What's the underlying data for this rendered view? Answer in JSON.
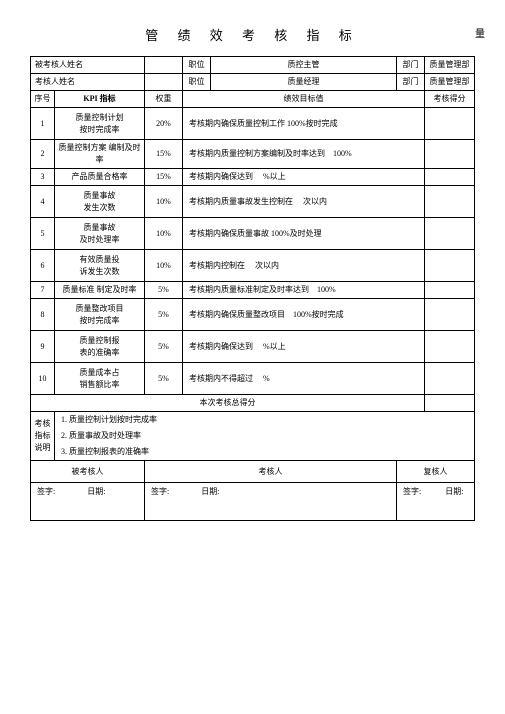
{
  "title": "管 绩 效 考 核 指 标",
  "title_right": "量",
  "header": {
    "assessee_label": "被考核人姓名",
    "assessee_value": "",
    "assessee_pos_label": "职位",
    "assessee_pos_value": "质控主管",
    "assessee_dept_label": "部门",
    "assessee_dept_value": "质量管理部",
    "assessor_label": "考核人姓名",
    "assessor_value": "",
    "assessor_pos_label": "职位",
    "assessor_pos_value": "质量经理",
    "assessor_dept_label": "部门",
    "assessor_dept_value": "质量管理部"
  },
  "columns": {
    "seq": "序号",
    "kpi": "KPI 指标",
    "weight": "权重",
    "target": "绩效目标值",
    "score": "考核得分"
  },
  "rows": [
    {
      "seq": "1",
      "kpi": "质量控制计划\n按时完成率",
      "weight": "20%",
      "target": "考核期内确保质量控制工作 100%按时完成"
    },
    {
      "seq": "2",
      "kpi": "质量控制方案 编制及时率",
      "weight": "15%",
      "target": "考核期内质量控制方案编制及时率达到　100%"
    },
    {
      "seq": "3",
      "kpi": "产品质量合格率",
      "weight": "15%",
      "target": "考核期内确保达到　 %以上"
    },
    {
      "seq": "4",
      "kpi": "质量事故\n发生次数",
      "weight": "10%",
      "target": "考核期内质量事故发生控制在　 次以内"
    },
    {
      "seq": "5",
      "kpi": "质量事故\n及时处理率",
      "weight": "10%",
      "target": "考核期内确保质量事故 100%及时处理"
    },
    {
      "seq": "6",
      "kpi": "有效质量投\n诉发生次数",
      "weight": "10%",
      "target": "考核期内控制在　 次以内"
    },
    {
      "seq": "7",
      "kpi": "质量标准 制定及时率",
      "weight": "5%",
      "target": "考核期内质量标准制定及时率达到　100%"
    },
    {
      "seq": "8",
      "kpi": "质量整改项目\n按时完成率",
      "weight": "5%",
      "target": "考核期内确保质量整改项目　100%按时完成"
    },
    {
      "seq": "9",
      "kpi": "质量控制报\n表的准确率",
      "weight": "5%",
      "target": "考核期内确保达到　 %以上"
    },
    {
      "seq": "10",
      "kpi": "质量成本占\n销售额比率",
      "weight": "5%",
      "target": "考核期内不得超过　 %"
    }
  ],
  "total_label": "本次考核总得分",
  "notes": {
    "label": "考核\n指标\n说明",
    "line1": "1. 质量控制计划按时完成率",
    "line2": "2. 质量事故及时处理率",
    "line3": "3. 质量控制报表的准确率"
  },
  "sign": {
    "assessee": "被考核人",
    "assessor": "考核人",
    "reviewer": "复核人",
    "sig": "签字:",
    "date": "日期:"
  }
}
